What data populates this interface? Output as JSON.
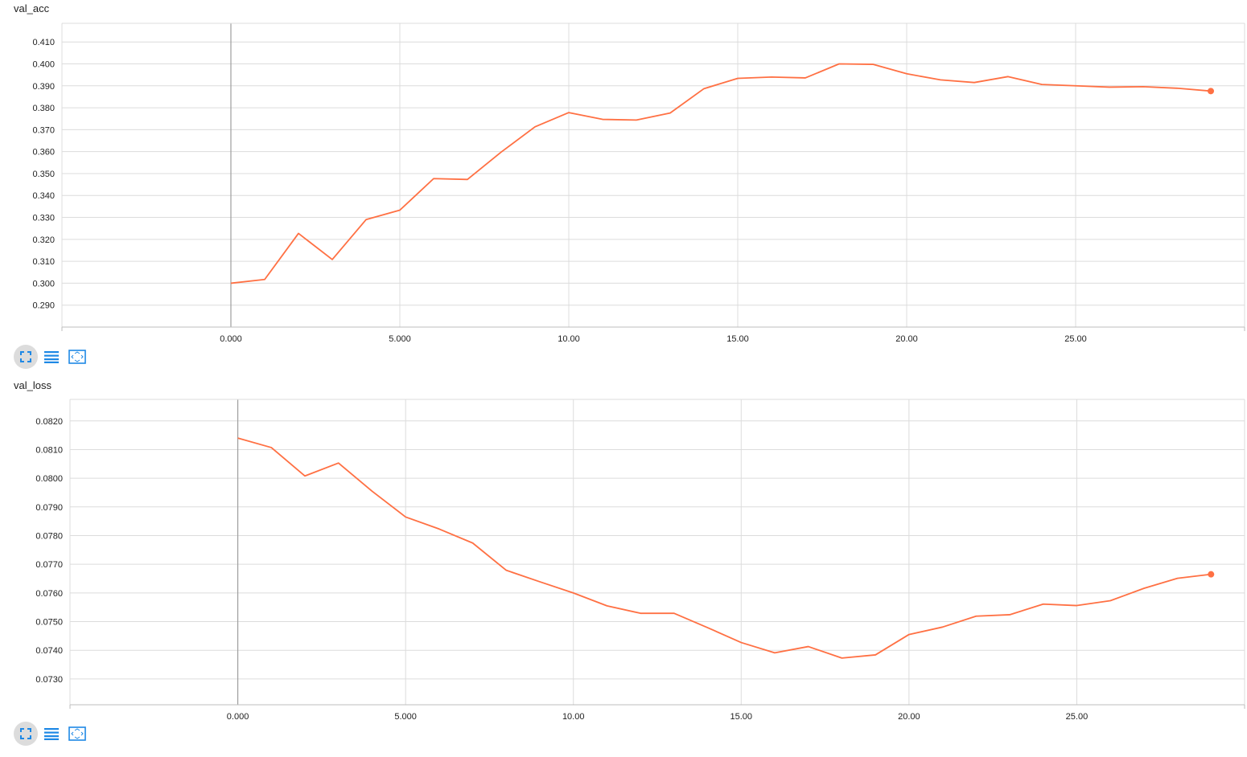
{
  "chart_data": [
    {
      "type": "line",
      "title": "val_acc",
      "xlim": [
        -5,
        30
      ],
      "ylim": [
        0.28,
        0.4185
      ],
      "xticks": [
        0,
        5,
        10,
        15,
        20,
        25
      ],
      "xtick_labels": [
        "0.000",
        "5.000",
        "10.00",
        "15.00",
        "20.00",
        "25.00"
      ],
      "yticks": [
        0.29,
        0.3,
        0.31,
        0.32,
        0.33,
        0.34,
        0.35,
        0.36,
        0.37,
        0.38,
        0.39,
        0.4,
        0.41
      ],
      "ytick_labels": [
        "0.290",
        "0.300",
        "0.310",
        "0.320",
        "0.330",
        "0.340",
        "0.350",
        "0.360",
        "0.370",
        "0.380",
        "0.390",
        "0.400",
        "0.410"
      ],
      "grid": true,
      "color": "#ff7043",
      "series": [
        {
          "x": [
            0,
            1,
            2,
            3,
            4,
            5,
            6,
            7,
            8,
            9,
            10,
            11,
            12,
            13,
            14,
            15,
            16,
            17,
            18,
            19,
            20,
            21,
            22,
            23,
            24,
            25,
            26,
            27,
            28,
            29
          ],
          "values": [
            0.3,
            0.3017,
            0.3227,
            0.3108,
            0.329,
            0.3333,
            0.3477,
            0.3473,
            0.3598,
            0.3713,
            0.3778,
            0.3747,
            0.3744,
            0.3776,
            0.3887,
            0.3934,
            0.394,
            0.3936,
            0.4,
            0.3998,
            0.3955,
            0.3927,
            0.3915,
            0.3942,
            0.3906,
            0.39,
            0.3894,
            0.3896,
            0.3889,
            0.3876
          ]
        }
      ]
    },
    {
      "type": "line",
      "title": "val_loss",
      "xlim": [
        -5,
        30
      ],
      "ylim": [
        0.0721,
        0.08275
      ],
      "xticks": [
        0,
        5,
        10,
        15,
        20,
        25
      ],
      "xtick_labels": [
        "0.000",
        "5.000",
        "10.00",
        "15.00",
        "20.00",
        "25.00"
      ],
      "yticks": [
        0.073,
        0.074,
        0.075,
        0.076,
        0.077,
        0.078,
        0.079,
        0.08,
        0.081,
        0.082
      ],
      "ytick_labels": [
        "0.0730",
        "0.0740",
        "0.0750",
        "0.0760",
        "0.0770",
        "0.0780",
        "0.0790",
        "0.0800",
        "0.0810",
        "0.0820"
      ],
      "grid": true,
      "color": "#ff7043",
      "series": [
        {
          "x": [
            0,
            1,
            2,
            3,
            4,
            5,
            6,
            7,
            8,
            9,
            10,
            11,
            12,
            13,
            14,
            15,
            16,
            17,
            18,
            19,
            20,
            21,
            22,
            23,
            24,
            25,
            26,
            27,
            28,
            29
          ],
          "values": [
            0.0814,
            0.08107,
            0.08008,
            0.08053,
            0.07955,
            0.07865,
            0.07823,
            0.07774,
            0.07679,
            0.07639,
            0.076,
            0.07555,
            0.07529,
            0.07529,
            0.07479,
            0.07427,
            0.07391,
            0.07413,
            0.07373,
            0.07384,
            0.07455,
            0.07481,
            0.07519,
            0.07524,
            0.07561,
            0.07556,
            0.07573,
            0.07616,
            0.07651,
            0.07665
          ]
        }
      ]
    }
  ]
}
